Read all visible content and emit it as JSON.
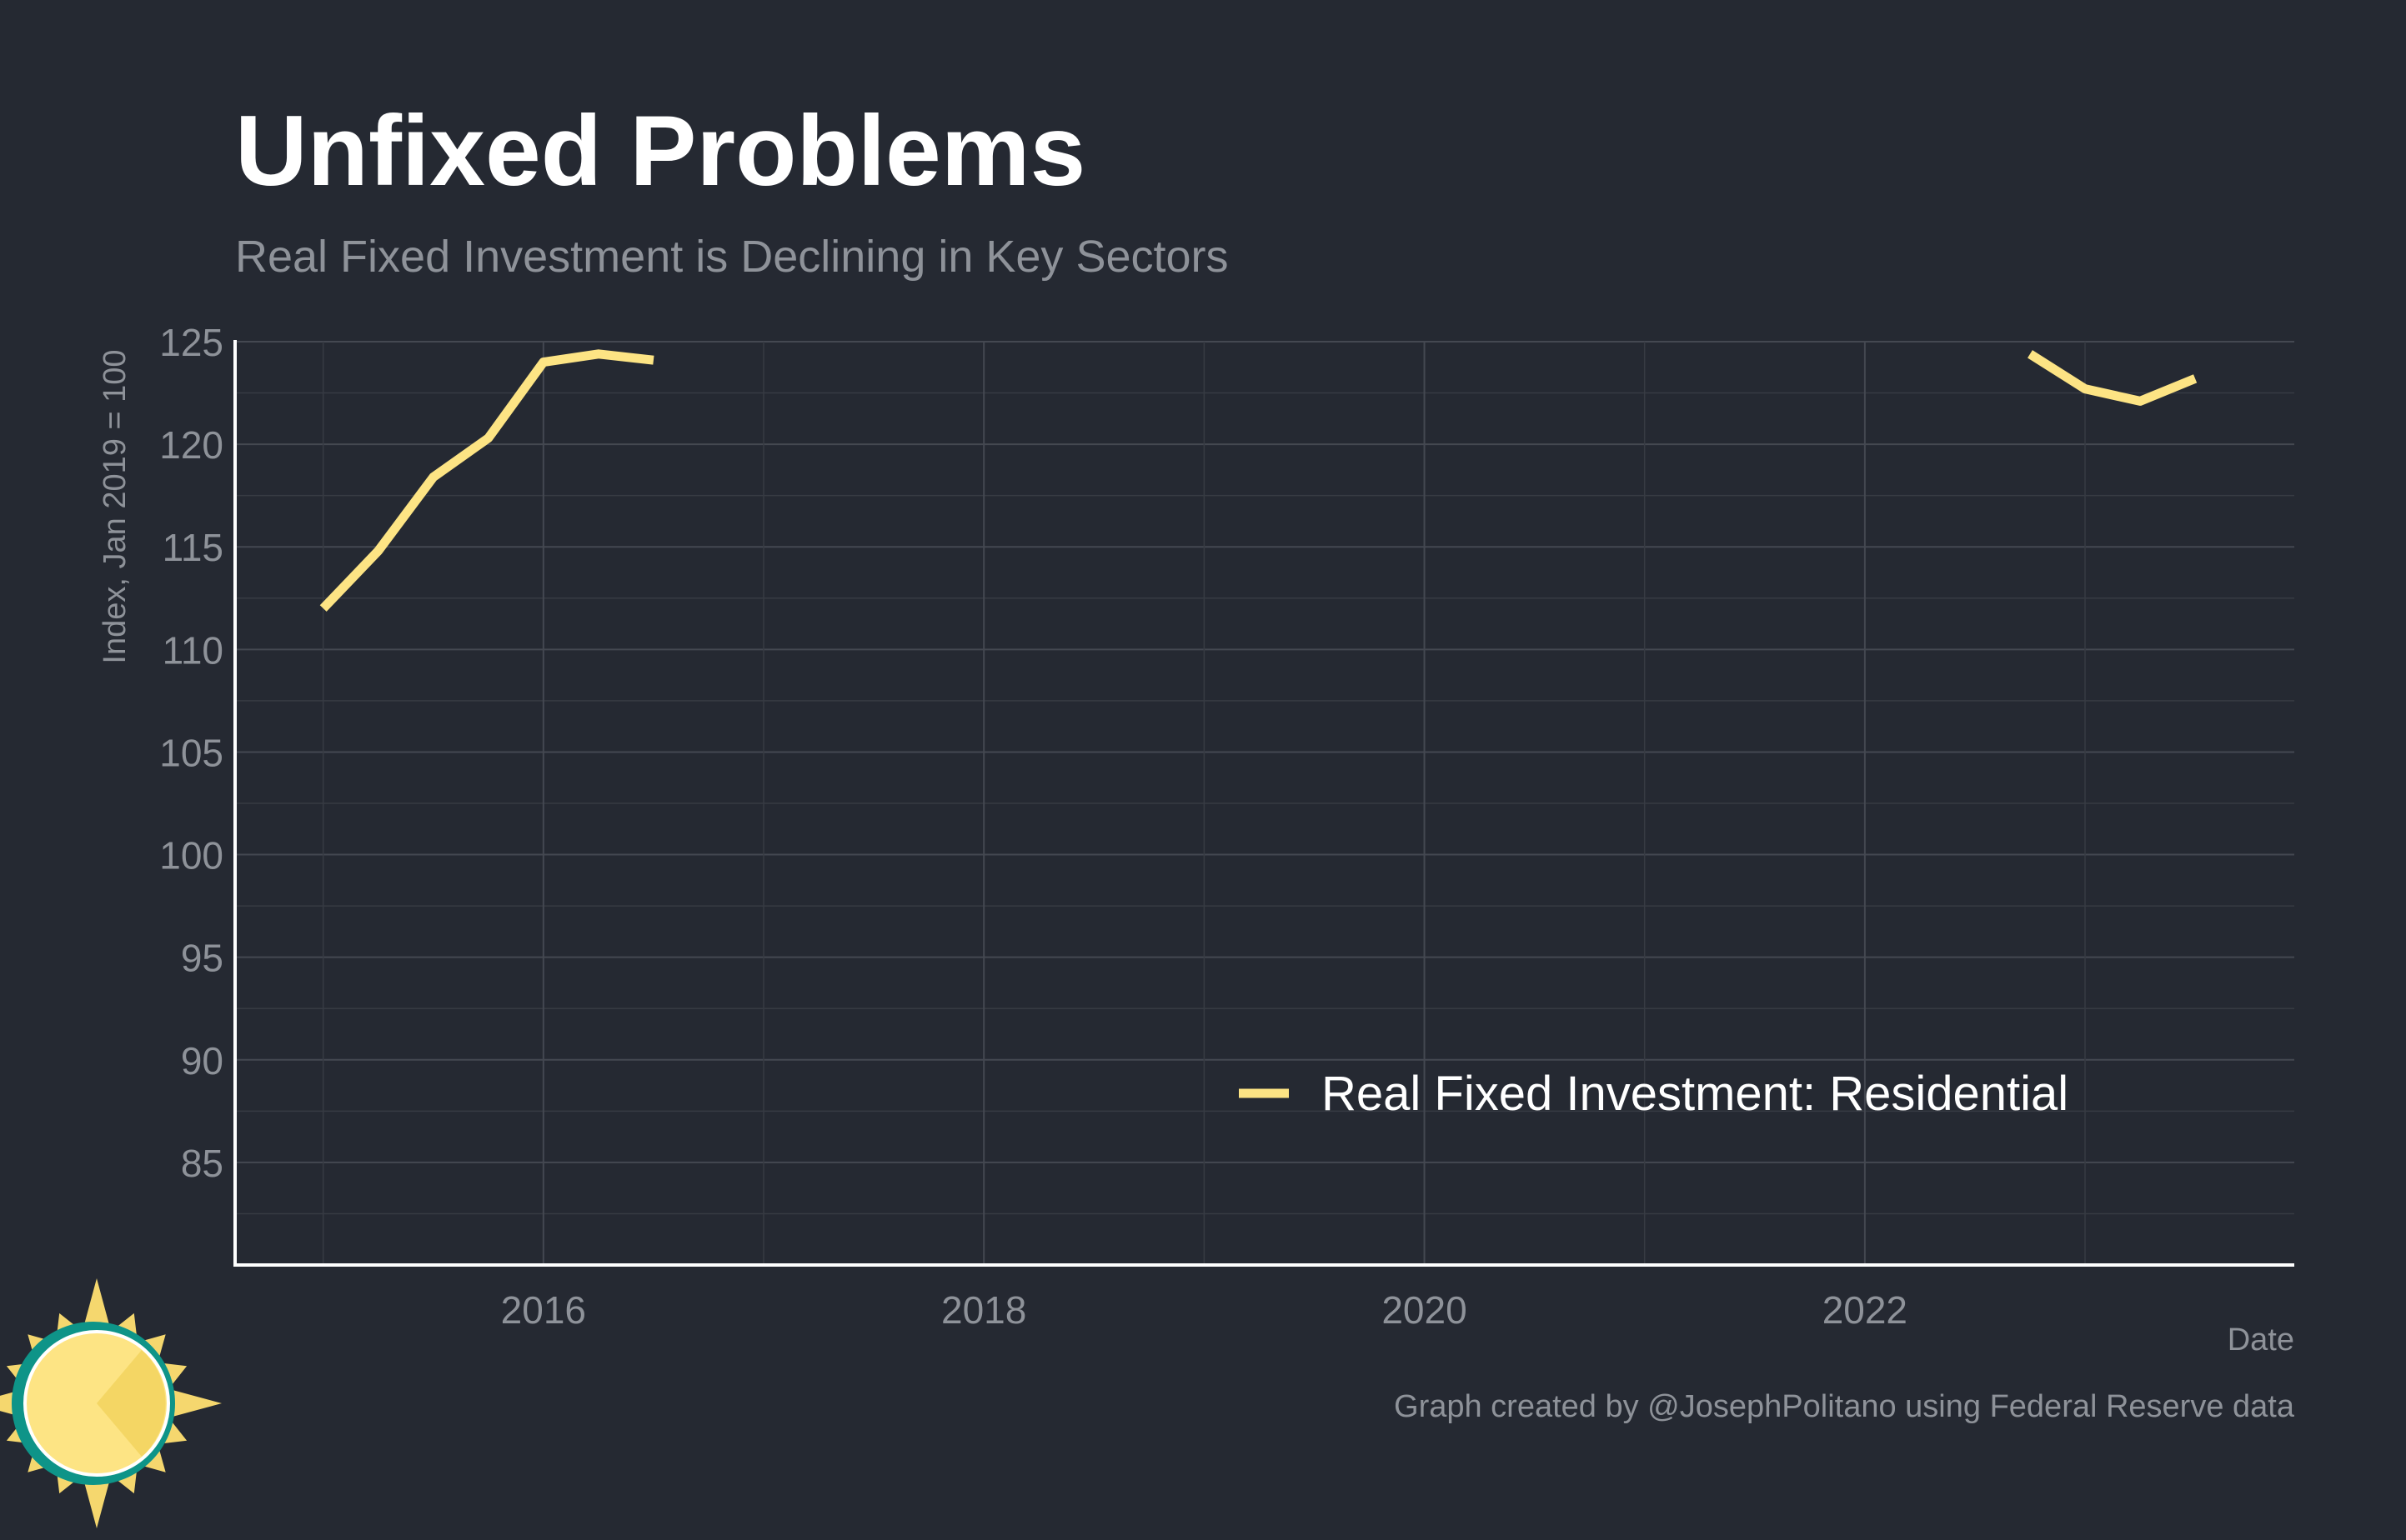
{
  "chart_data": {
    "type": "line",
    "title": "Unfixed Problems",
    "subtitle": "Real Fixed Investment is Declining in Key Sectors",
    "xlabel": "Date",
    "ylabel": "Index, Jan 2019 = 100",
    "xlim": [
      2014.6,
      2023.95
    ],
    "ylim": [
      80,
      125
    ],
    "x_ticks": [
      2016,
      2018,
      2020,
      2022
    ],
    "x_tick_labels": [
      "2016",
      "2018",
      "2020",
      "2022"
    ],
    "y_ticks": [
      85,
      90,
      95,
      100,
      105,
      110,
      115,
      120,
      125
    ],
    "y_tick_labels": [
      "85",
      "90",
      "95",
      "100",
      "105",
      "110",
      "115",
      "120",
      "125"
    ],
    "grid": true,
    "legend_position": "bottom-right",
    "series": [
      {
        "name": "Real Fixed Investment: Residential",
        "color": "#FDE484",
        "segments": [
          {
            "x": [
              2015.0,
              2015.25,
              2015.5,
              2015.75,
              2016.0,
              2016.25,
              2016.5
            ],
            "y": [
              112.0,
              114.8,
              118.4,
              120.3,
              124.0,
              124.4,
              124.1
            ]
          },
          {
            "x": [
              2022.75,
              2023.0,
              2023.25,
              2023.5
            ],
            "y": [
              124.4,
              122.7,
              122.1,
              123.2
            ]
          }
        ]
      }
    ]
  },
  "footer": {
    "credit": "Graph created by @JosephPolitano using Federal Reserve data"
  },
  "logo": {
    "icon": "sun-logo-icon",
    "colors": {
      "sun": "#FDE484",
      "ring": "#0E9488",
      "rays": "#F5D76E"
    }
  },
  "colors": {
    "background": "#252932",
    "title": "#FFFFFF",
    "muted_text": "#8E9299",
    "grid_major": "#444851",
    "grid_minor": "#373B43",
    "axis": "#FFFFFF"
  }
}
